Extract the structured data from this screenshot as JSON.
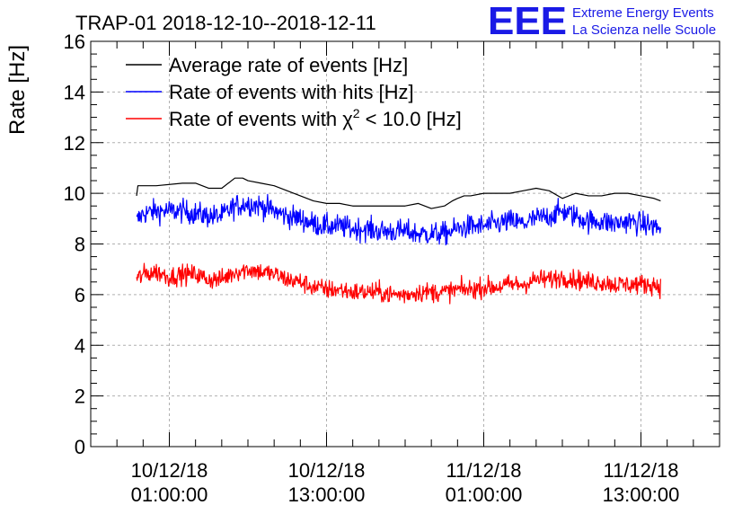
{
  "chart_data": {
    "type": "line",
    "title": "TRAP-01 2018-12-10--2018-12-11",
    "ylabel": "Rate [Hz]",
    "xlabel": "",
    "ylim": [
      0,
      16
    ],
    "yticks": [
      "0",
      "2",
      "4",
      "6",
      "8",
      "10",
      "12",
      "14",
      "16"
    ],
    "xlim_hours": [
      0,
      48
    ],
    "xticks": [
      {
        "hour": 6,
        "date": "10/12/18",
        "time": "01:00:00"
      },
      {
        "hour": 18,
        "date": "10/12/18",
        "time": "13:00:00"
      },
      {
        "hour": 30,
        "date": "11/12/18",
        "time": "01:00:00"
      },
      {
        "hour": 42,
        "date": "11/12/18",
        "time": "13:00:00"
      }
    ],
    "grid": true,
    "legend_position": "top-left",
    "series": [
      {
        "name": "Average rate of events [Hz]",
        "color": "#000000",
        "x_hours": [
          3.5,
          3.6,
          5.0,
          7.0,
          8.0,
          9.0,
          10.0,
          11.0,
          11.6,
          12.0,
          13.0,
          14.0,
          15.0,
          16.0,
          17.0,
          18.0,
          19.0,
          20.0,
          21.0,
          22.0,
          23.0,
          24.0,
          25.0,
          26.0,
          27.0,
          27.6,
          28.0,
          28.5,
          29.0,
          30.0,
          31.0,
          32.0,
          33.0,
          34.0,
          35.0,
          36.0,
          37.0,
          38.0,
          39.0,
          40.0,
          41.0,
          42.0,
          43.0,
          43.5
        ],
        "values": [
          9.9,
          10.3,
          10.3,
          10.4,
          10.4,
          10.2,
          10.2,
          10.6,
          10.6,
          10.5,
          10.4,
          10.3,
          10.1,
          9.9,
          9.7,
          9.6,
          9.6,
          9.5,
          9.5,
          9.5,
          9.5,
          9.5,
          9.6,
          9.4,
          9.5,
          9.7,
          9.8,
          9.9,
          9.9,
          10.0,
          10.0,
          10.0,
          10.1,
          10.2,
          10.1,
          9.8,
          10.0,
          9.9,
          9.9,
          10.0,
          10.0,
          9.9,
          9.8,
          9.7
        ]
      },
      {
        "name": "Rate of events with hits [Hz]",
        "color": "#0000ff",
        "x_hours": [
          3.5,
          4.0,
          5.0,
          6.0,
          7.0,
          8.0,
          9.0,
          10.0,
          11.0,
          12.0,
          13.0,
          14.0,
          15.0,
          16.0,
          17.0,
          18.0,
          19.0,
          20.0,
          21.0,
          22.0,
          23.0,
          24.0,
          25.0,
          26.0,
          27.0,
          28.0,
          29.0,
          30.0,
          31.0,
          32.0,
          33.0,
          34.0,
          35.0,
          36.0,
          37.0,
          38.0,
          39.0,
          40.0,
          41.0,
          42.0,
          43.0,
          43.5
        ],
        "values": [
          8.9,
          9.2,
          9.3,
          9.3,
          9.3,
          9.2,
          9.1,
          9.1,
          9.5,
          9.6,
          9.5,
          9.3,
          9.1,
          9.0,
          8.8,
          8.7,
          8.7,
          8.6,
          8.6,
          8.5,
          8.5,
          8.5,
          8.4,
          8.4,
          8.4,
          8.6,
          8.7,
          8.7,
          8.8,
          8.9,
          8.8,
          9.0,
          9.1,
          9.3,
          9.1,
          8.9,
          8.9,
          8.8,
          8.9,
          8.8,
          8.7,
          8.6
        ],
        "noise": 0.45
      },
      {
        "name": "Rate of events with χ² < 10.0 [Hz]",
        "color": "#ff0000",
        "x_hours": [
          3.5,
          4.0,
          5.0,
          6.0,
          7.0,
          8.0,
          9.0,
          10.0,
          11.0,
          12.0,
          13.0,
          14.0,
          15.0,
          16.0,
          17.0,
          18.0,
          19.0,
          20.0,
          21.0,
          22.0,
          23.0,
          24.0,
          25.0,
          26.0,
          27.0,
          28.0,
          29.0,
          30.0,
          31.0,
          32.0,
          33.0,
          34.0,
          35.0,
          36.0,
          37.0,
          38.0,
          39.0,
          40.0,
          41.0,
          42.0,
          43.0,
          43.5
        ],
        "values": [
          6.6,
          6.8,
          6.9,
          6.7,
          6.8,
          6.8,
          6.6,
          6.6,
          6.9,
          7.0,
          6.9,
          6.8,
          6.6,
          6.5,
          6.3,
          6.2,
          6.2,
          6.1,
          6.1,
          6.1,
          6.0,
          6.0,
          6.1,
          6.1,
          6.1,
          6.2,
          6.2,
          6.3,
          6.3,
          6.4,
          6.4,
          6.6,
          6.6,
          6.7,
          6.6,
          6.5,
          6.5,
          6.4,
          6.4,
          6.4,
          6.4,
          6.3
        ],
        "noise": 0.38
      }
    ],
    "legend": [
      {
        "prefix": "Average rate of events [Hz]",
        "sup": "",
        "suffix": "",
        "color": "#000000"
      },
      {
        "prefix": "Rate of events with hits [Hz]",
        "sup": "",
        "suffix": "",
        "color": "#0000ff"
      },
      {
        "prefix": "Rate of events with χ",
        "sup": "2",
        "suffix": " < 10.0 [Hz]",
        "color": "#ff0000"
      }
    ]
  },
  "logo": {
    "mark": "EEE",
    "line1": "Extreme Energy Events",
    "line2": "La Scienza nelle Scuole",
    "color": "#0000cc"
  }
}
